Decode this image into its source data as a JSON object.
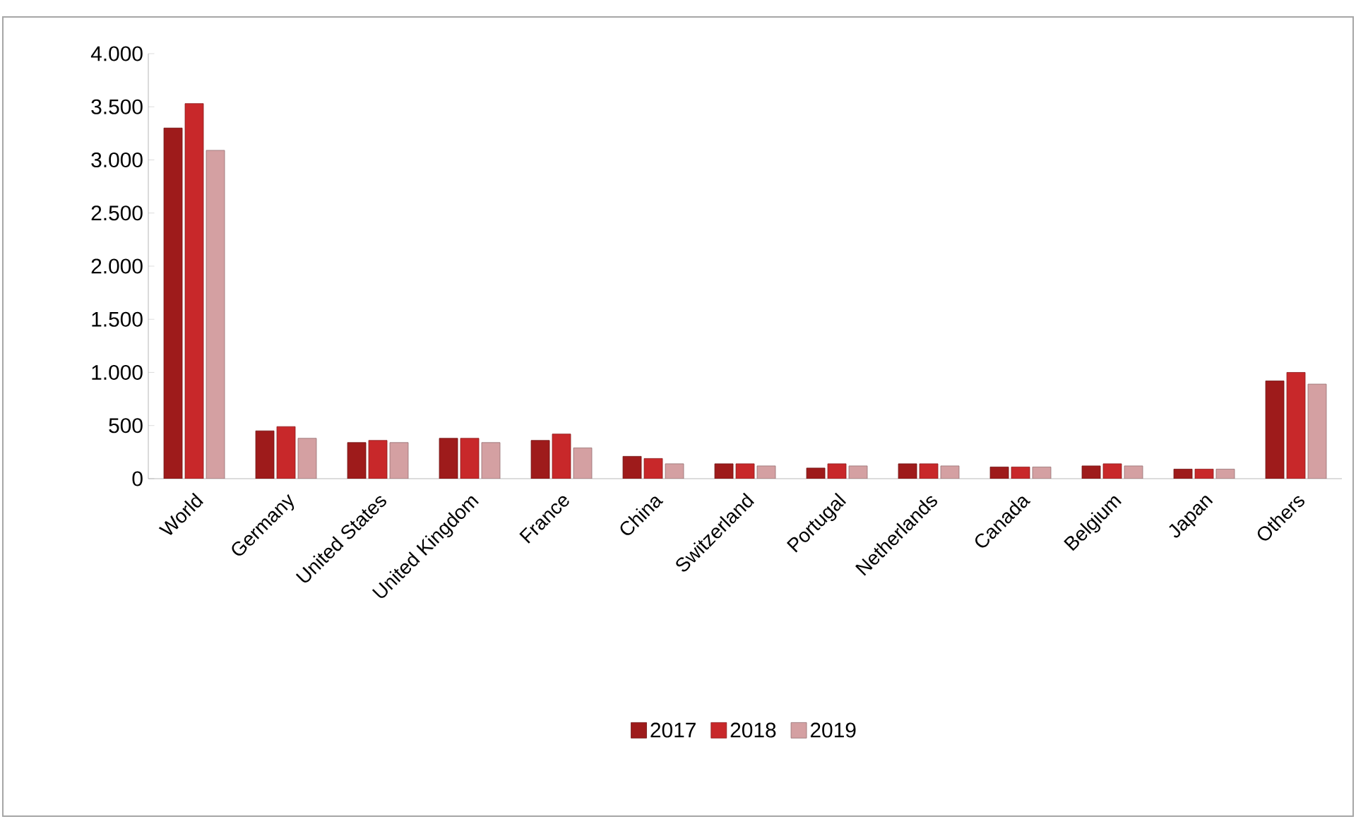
{
  "chart_data": {
    "type": "bar",
    "categories": [
      "World",
      "Germany",
      "United States",
      "United Kingdom",
      "France",
      "China",
      "Switzerland",
      "Portugal",
      "Netherlands",
      "Canada",
      "Belgium",
      "Japan",
      "Others"
    ],
    "series": [
      {
        "name": "2017",
        "color": "#9e1b1b",
        "values": [
          3300,
          450,
          340,
          380,
          360,
          210,
          140,
          100,
          140,
          110,
          120,
          90,
          920
        ]
      },
      {
        "name": "2018",
        "color": "#c8282a",
        "values": [
          3530,
          490,
          360,
          380,
          420,
          190,
          140,
          140,
          140,
          110,
          140,
          90,
          1000
        ]
      },
      {
        "name": "2019",
        "color": "#d4a0a2",
        "values": [
          3090,
          380,
          340,
          340,
          290,
          140,
          120,
          120,
          120,
          110,
          120,
          90,
          890
        ]
      }
    ],
    "ylim": [
      0,
      4000
    ],
    "yticks": [
      {
        "value": 0,
        "label": "0"
      },
      {
        "value": 500,
        "label": "500"
      },
      {
        "value": 1000,
        "label": "1.000"
      },
      {
        "value": 1500,
        "label": "1.500"
      },
      {
        "value": 2000,
        "label": "2.000"
      },
      {
        "value": 2500,
        "label": "2.500"
      },
      {
        "value": 3000,
        "label": "3.000"
      },
      {
        "value": 3500,
        "label": "3.500"
      },
      {
        "value": 4000,
        "label": "4.000"
      }
    ],
    "grid": false,
    "legend": "bottom"
  }
}
